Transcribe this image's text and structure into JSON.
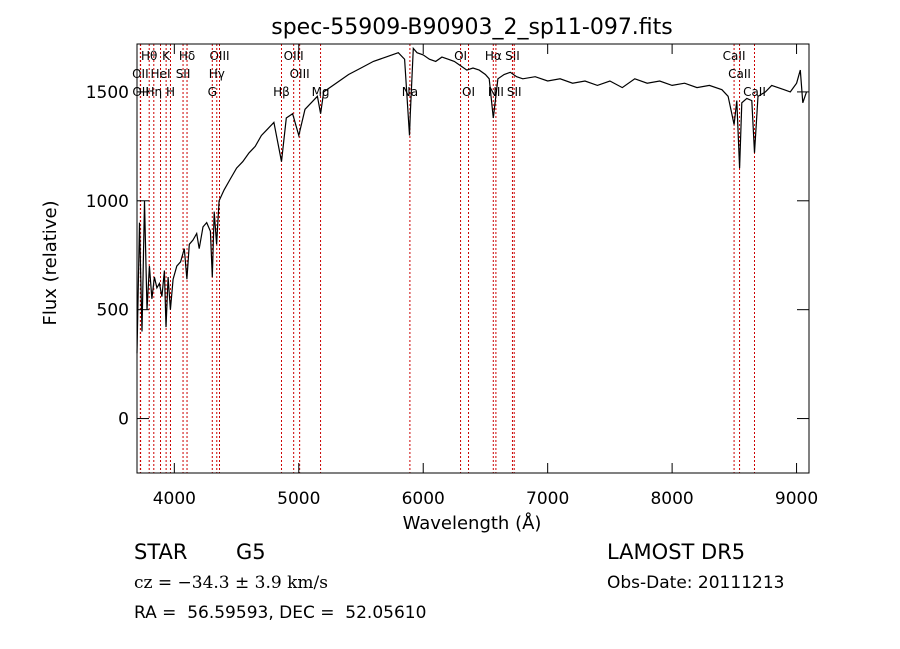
{
  "chart_data": {
    "type": "line",
    "title": "spec-55909-B90903_2_sp11-097.fits",
    "xlabel": "Wavelength (Å)",
    "ylabel": "Flux (relative)",
    "xlim": [
      3700,
      9100
    ],
    "ylim": [
      -250,
      1720
    ],
    "xticks": [
      4000,
      5000,
      6000,
      7000,
      8000,
      9000
    ],
    "yticks": [
      0,
      500,
      1000,
      1500
    ],
    "grid": false,
    "line_color": "#000000",
    "marker_color": "#cc0000",
    "series": [
      {
        "name": "",
        "x": [
          3700,
          3720,
          3740,
          3760,
          3780,
          3800,
          3820,
          3840,
          3860,
          3880,
          3900,
          3920,
          3933,
          3950,
          3968,
          3990,
          4020,
          4050,
          4080,
          4101,
          4120,
          4150,
          4180,
          4200,
          4230,
          4260,
          4290,
          4305,
          4320,
          4340,
          4360,
          4400,
          4450,
          4500,
          4550,
          4600,
          4650,
          4700,
          4750,
          4800,
          4861,
          4900,
          4950,
          5000,
          5050,
          5100,
          5150,
          5175,
          5200,
          5300,
          5400,
          5500,
          5600,
          5700,
          5800,
          5850,
          5890,
          5896,
          5920,
          5950,
          6000,
          6050,
          6100,
          6150,
          6200,
          6250,
          6300,
          6350,
          6400,
          6450,
          6500,
          6530,
          6563,
          6600,
          6650,
          6700,
          6750,
          6800,
          6900,
          7000,
          7100,
          7200,
          7300,
          7400,
          7500,
          7600,
          7700,
          7800,
          7900,
          8000,
          8100,
          8200,
          8300,
          8400,
          8450,
          8498,
          8520,
          8542,
          8560,
          8600,
          8640,
          8662,
          8690,
          8750,
          8800,
          8850,
          8900,
          8950,
          9000,
          9030,
          9050,
          9080
        ],
        "y": [
          300,
          900,
          400,
          1000,
          500,
          700,
          550,
          650,
          600,
          620,
          560,
          680,
          420,
          650,
          500,
          640,
          700,
          720,
          780,
          640,
          800,
          820,
          850,
          780,
          880,
          900,
          860,
          650,
          950,
          800,
          1000,
          1050,
          1100,
          1150,
          1180,
          1220,
          1250,
          1300,
          1330,
          1360,
          1180,
          1380,
          1400,
          1300,
          1420,
          1450,
          1480,
          1400,
          1500,
          1540,
          1580,
          1610,
          1640,
          1660,
          1680,
          1650,
          1300,
          1400,
          1700,
          1680,
          1670,
          1650,
          1640,
          1660,
          1650,
          1640,
          1620,
          1600,
          1610,
          1600,
          1580,
          1560,
          1380,
          1560,
          1580,
          1590,
          1570,
          1560,
          1570,
          1550,
          1560,
          1540,
          1550,
          1530,
          1550,
          1520,
          1560,
          1540,
          1550,
          1530,
          1540,
          1520,
          1530,
          1510,
          1480,
          1350,
          1460,
          1150,
          1450,
          1470,
          1460,
          1220,
          1480,
          1500,
          1530,
          1520,
          1510,
          1500,
          1540,
          1600,
          1450,
          1500
        ]
      }
    ],
    "line_markers": [
      {
        "label": "Hθ",
        "x": 3798,
        "row": 0
      },
      {
        "label": "K",
        "x": 3934,
        "row": 0
      },
      {
        "label": "Hδ",
        "x": 4102,
        "row": 0
      },
      {
        "label": "OIII",
        "x": 4363,
        "row": 0
      },
      {
        "label": "OIII",
        "x": 4959,
        "row": 0
      },
      {
        "label": "OI",
        "x": 6300,
        "row": 0
      },
      {
        "label": "Hα",
        "x": 6563,
        "row": 0
      },
      {
        "label": "SII",
        "x": 6717,
        "row": 0
      },
      {
        "label": "CaII",
        "x": 8498,
        "row": 0
      },
      {
        "label": "OII",
        "x": 3727,
        "row": 1
      },
      {
        "label": "HeI",
        "x": 3889,
        "row": 1
      },
      {
        "label": "SII",
        "x": 4070,
        "row": 1
      },
      {
        "label": "Hγ",
        "x": 4341,
        "row": 1
      },
      {
        "label": "OIII",
        "x": 5007,
        "row": 1
      },
      {
        "label": "CaII",
        "x": 8542,
        "row": 1
      },
      {
        "label": "OII",
        "x": 3729,
        "row": 2
      },
      {
        "label": "Hη",
        "x": 3835,
        "row": 2
      },
      {
        "label": "H",
        "x": 3969,
        "row": 2
      },
      {
        "label": "G",
        "x": 4305,
        "row": 2
      },
      {
        "label": "Hβ",
        "x": 4861,
        "row": 2
      },
      {
        "label": "Mg",
        "x": 5175,
        "row": 2
      },
      {
        "label": "Na",
        "x": 5893,
        "row": 2
      },
      {
        "label": "OI",
        "x": 6364,
        "row": 2
      },
      {
        "label": "NII",
        "x": 6584,
        "row": 2
      },
      {
        "label": "SII",
        "x": 6731,
        "row": 2
      },
      {
        "label": "CaII",
        "x": 8662,
        "row": 2
      }
    ]
  },
  "info": {
    "class_label": "STAR",
    "subclass_label": "G5",
    "survey_label": "LAMOST DR5",
    "cz_text": "cz = −34.3 ± 3.9 km/s",
    "obs_date_text": "Obs-Date: 20111213",
    "coords_text": "RA =  56.59593, DEC =  52.05610"
  }
}
